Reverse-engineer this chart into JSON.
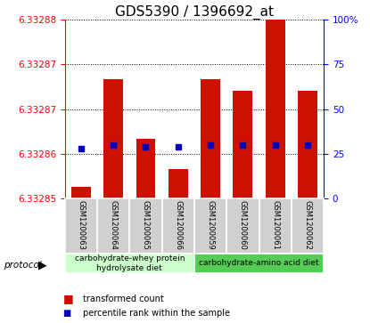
{
  "title": "GDS5390 / 1396692_at",
  "samples": [
    "GSM1200063",
    "GSM1200064",
    "GSM1200065",
    "GSM1200066",
    "GSM1200059",
    "GSM1200060",
    "GSM1200061",
    "GSM1200062"
  ],
  "transformed_count": [
    6.332852,
    6.33287,
    6.33286,
    6.332855,
    6.33287,
    6.332868,
    6.33288,
    6.332868
  ],
  "percentile_rank": [
    28,
    30,
    29,
    29,
    30,
    30,
    30,
    30
  ],
  "y_min": 6.33285,
  "y_max": 6.33288,
  "ytick_labels": [
    "6.33285",
    "6.33286",
    "6.33287",
    "6.33287",
    "6.33288"
  ],
  "bar_color": "#CC1100",
  "dot_color": "#0000BB",
  "group1_label": "carbohydrate-whey protein\nhydrolysate diet",
  "group2_label": "carbohydrate-amino acid diet",
  "group1_color": "#CCFFCC",
  "group2_color": "#55CC55",
  "protocol_label": "protocol",
  "legend_bar_label": "transformed count",
  "legend_dot_label": "percentile rank within the sample",
  "title_fontsize": 11,
  "tick_fontsize": 7.5,
  "sample_fontsize": 6,
  "prot_fontsize": 6.5,
  "legend_fontsize": 7
}
